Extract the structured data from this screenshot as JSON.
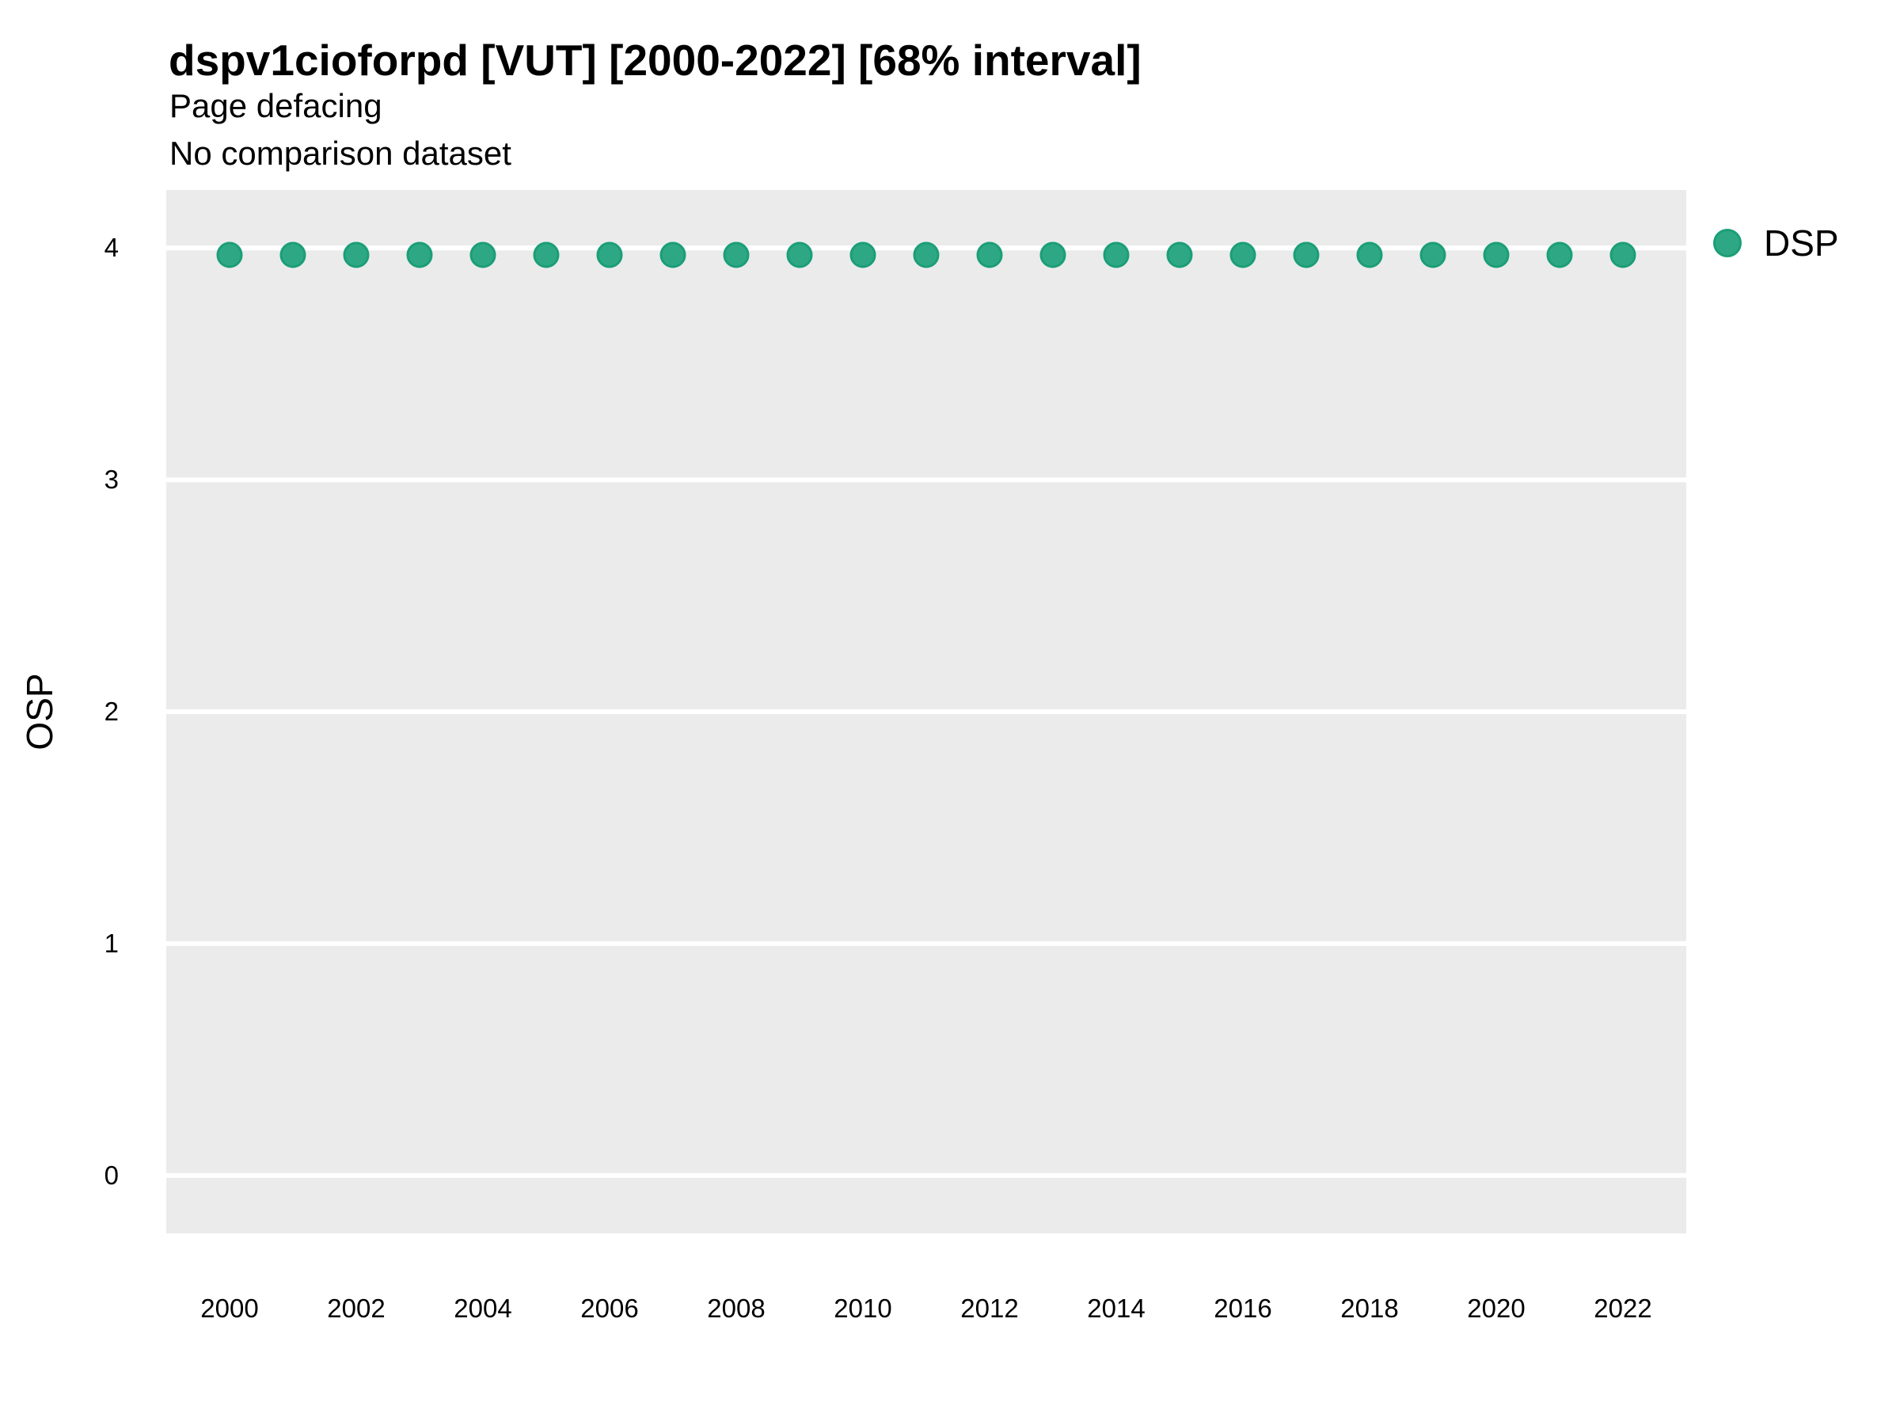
{
  "chart_data": {
    "type": "scatter",
    "title": "dspv1cioforpd [VUT] [2000-2022] [68% interval]",
    "subtitle_lines": [
      "Page defacing",
      "No comparison dataset"
    ],
    "xlabel": "",
    "ylabel": "OSP",
    "x": [
      2000,
      2001,
      2002,
      2003,
      2004,
      2005,
      2006,
      2007,
      2008,
      2009,
      2010,
      2011,
      2012,
      2013,
      2014,
      2015,
      2016,
      2017,
      2018,
      2019,
      2020,
      2021,
      2022
    ],
    "series": [
      {
        "name": "DSP",
        "values": [
          3.97,
          3.97,
          3.97,
          3.97,
          3.97,
          3.97,
          3.97,
          3.97,
          3.97,
          3.97,
          3.97,
          3.97,
          3.97,
          3.97,
          3.97,
          3.97,
          3.97,
          3.97,
          3.97,
          3.97,
          3.97,
          3.97,
          3.97
        ]
      }
    ],
    "xticks": [
      2000,
      2002,
      2004,
      2006,
      2008,
      2010,
      2012,
      2014,
      2016,
      2018,
      2020,
      2022
    ],
    "yticks": [
      0,
      1,
      2,
      3,
      4
    ],
    "xlim": [
      1999.0,
      2023.0
    ],
    "ylim": [
      -0.25,
      4.25
    ],
    "grid": "horizontal-major-only",
    "legend": {
      "position": "right-top",
      "entries": [
        {
          "label": "DSP"
        }
      ]
    },
    "colors": {
      "point_fill": "#2ea884",
      "point_stroke": "#1b9e77",
      "panel_bg": "#ebebeb",
      "gridline": "#ffffff",
      "text": "#000000"
    }
  }
}
